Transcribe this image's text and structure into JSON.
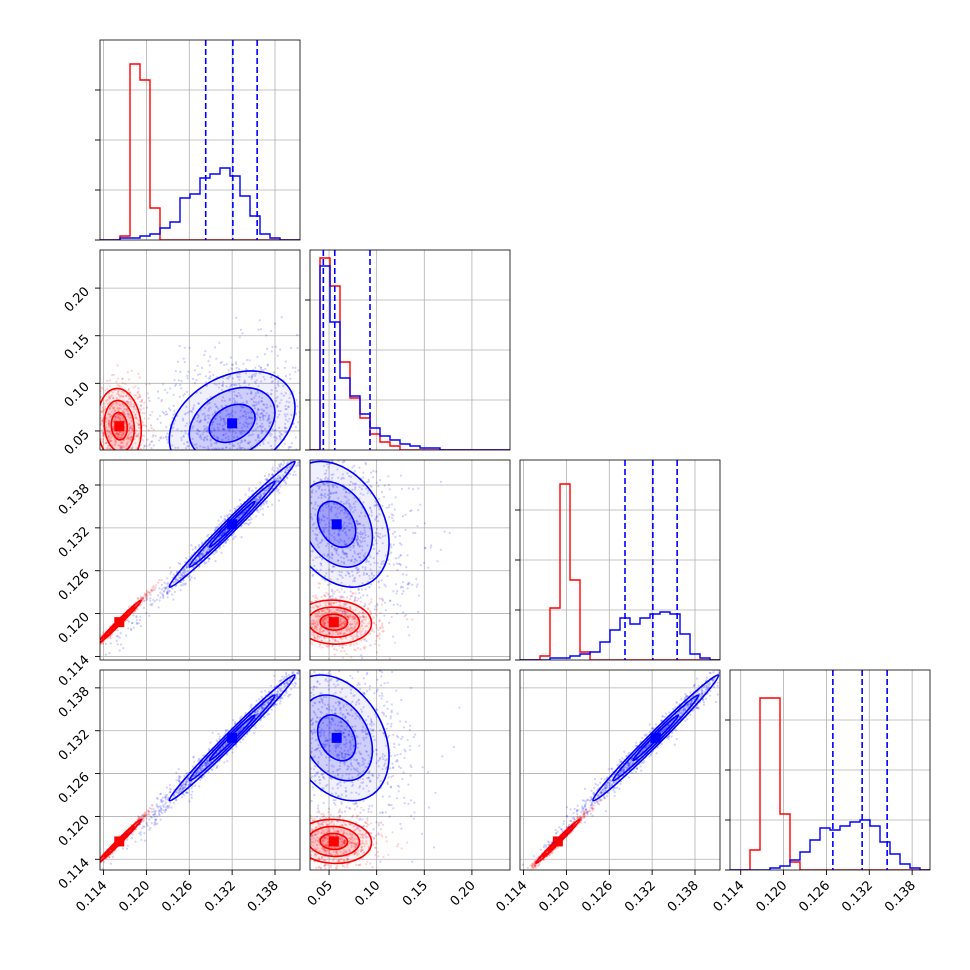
{
  "chart_data": {
    "type": "corner",
    "grid": true,
    "colors": {
      "series_a": "#ff0000",
      "series_b": "#0000ff"
    },
    "parameters": [
      {
        "range": [
          0.1135,
          0.1415
        ],
        "ticks": [
          0.114,
          0.12,
          0.126,
          0.132,
          0.138
        ],
        "tick_labels": [
          "0.114",
          "0.120",
          "0.126",
          "0.132",
          "0.138"
        ]
      },
      {
        "range": [
          0.03,
          0.24
        ],
        "ticks": [
          0.05,
          0.1,
          0.15,
          0.2
        ],
        "tick_labels": [
          "0.05",
          "0.10",
          "0.15",
          "0.20"
        ]
      },
      {
        "range": [
          0.1135,
          0.1415
        ],
        "ticks": [
          0.114,
          0.12,
          0.126,
          0.132,
          0.138
        ],
        "tick_labels": [
          "0.114",
          "0.120",
          "0.126",
          "0.132",
          "0.138"
        ]
      },
      {
        "range": [
          0.1125,
          0.1405
        ],
        "ticks": [
          0.114,
          0.12,
          0.126,
          0.132,
          0.138
        ],
        "tick_labels": [
          "0.114",
          "0.120",
          "0.126",
          "0.132",
          "0.138"
        ]
      }
    ],
    "series": [
      {
        "color": "#ff0000",
        "histograms": [
          [
            0.0,
            0.0,
            0.02,
            0.88,
            0.8,
            0.16,
            0.0,
            0.0,
            0.0,
            0.0,
            0.0,
            0.0,
            0.0,
            0.0,
            0.0,
            0.0,
            0.0,
            0.0,
            0.0,
            0.0
          ],
          [
            0.0,
            0.96,
            0.82,
            0.44,
            0.26,
            0.16,
            0.08,
            0.04,
            0.02,
            0.0,
            0.0,
            0.0,
            0.0,
            0.0,
            0.0,
            0.0,
            0.0,
            0.0,
            0.0,
            0.0
          ],
          [
            0.0,
            0.0,
            0.02,
            0.26,
            0.88,
            0.4,
            0.04,
            0.0,
            0.0,
            0.0,
            0.0,
            0.0,
            0.0,
            0.0,
            0.0,
            0.0,
            0.0,
            0.0,
            0.0,
            0.0
          ],
          [
            0.0,
            0.0,
            0.1,
            0.86,
            0.86,
            0.28,
            0.04,
            0.0,
            0.0,
            0.0,
            0.0,
            0.0,
            0.0,
            0.0,
            0.0,
            0.0,
            0.0,
            0.0,
            0.0,
            0.0
          ]
        ],
        "correlation": [
          [
            0,
            -0.1,
            0.99,
            0.99
          ],
          [
            -0.1,
            0,
            -0.05,
            -0.05
          ],
          [
            0.99,
            -0.05,
            0,
            0.99
          ],
          [
            0.99,
            -0.05,
            0.99,
            0
          ]
        ],
        "contour_centers": [
          0.1162,
          0.055,
          0.1188,
          0.1165
        ],
        "contour_widths": [
          0.0014,
          0.018,
          0.0014,
          0.0014
        ]
      },
      {
        "color": "#0000ff",
        "histograms": [
          [
            0.0,
            0.0,
            0.01,
            0.01,
            0.02,
            0.03,
            0.06,
            0.09,
            0.21,
            0.23,
            0.31,
            0.33,
            0.36,
            0.32,
            0.22,
            0.12,
            0.03,
            0.01,
            0.0,
            0.0
          ],
          [
            0.0,
            0.92,
            0.64,
            0.36,
            0.27,
            0.18,
            0.11,
            0.07,
            0.05,
            0.03,
            0.02,
            0.01,
            0.01,
            0.0,
            0.0,
            0.0,
            0.0,
            0.0,
            0.0,
            0.0
          ],
          [
            0.0,
            0.0,
            0.0,
            0.01,
            0.01,
            0.02,
            0.03,
            0.04,
            0.09,
            0.15,
            0.21,
            0.18,
            0.21,
            0.23,
            0.24,
            0.23,
            0.13,
            0.03,
            0.01,
            0.0
          ],
          [
            0.0,
            0.0,
            0.0,
            0.0,
            0.01,
            0.02,
            0.05,
            0.09,
            0.15,
            0.21,
            0.2,
            0.22,
            0.24,
            0.25,
            0.22,
            0.14,
            0.08,
            0.03,
            0.01,
            0.0
          ]
        ],
        "quantile_lines": [
          [
            0.1283,
            0.1321,
            0.1355
          ],
          [
            0.044,
            0.056,
            0.093
          ],
          [
            0.1282,
            0.1321,
            0.1355
          ],
          [
            0.1269,
            0.131,
            0.1345
          ]
        ],
        "correlation": [
          [
            0,
            0.3,
            0.99,
            0.99
          ],
          [
            0.3,
            0,
            -0.3,
            -0.3
          ],
          [
            0.99,
            -0.3,
            0,
            0.99
          ],
          [
            0.99,
            -0.3,
            0.99,
            0
          ]
        ],
        "contour_centers": [
          0.132,
          0.058,
          0.1325,
          0.131
        ],
        "contour_widths": [
          0.004,
          0.025,
          0.004,
          0.004
        ]
      }
    ]
  }
}
